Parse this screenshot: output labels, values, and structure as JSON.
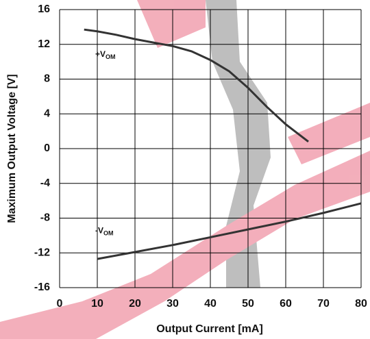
{
  "chart_data": {
    "type": "line",
    "x_label": "Output Current [mA]",
    "y_label": "Maximum Output Voltage [V]",
    "xlim": [
      0,
      80
    ],
    "xticks": [
      0,
      10,
      20,
      30,
      40,
      50,
      60,
      70,
      80
    ],
    "ylim": [
      -16,
      16
    ],
    "yticks": [
      -16,
      -12,
      -8,
      -4,
      0,
      4,
      8,
      12,
      16
    ],
    "grid": true,
    "series": [
      {
        "color": "#333333",
        "x": [
          6.5,
          10,
          15,
          20,
          25,
          30,
          35,
          40,
          45,
          50,
          55,
          60,
          66
        ],
        "values": [
          13.7,
          13.5,
          13.1,
          12.6,
          12.2,
          11.8,
          11.2,
          10.2,
          8.9,
          7,
          4.8,
          2.8,
          0.8
        ]
      },
      {
        "color": "#333333",
        "x": [
          10,
          20,
          30,
          40,
          50,
          60,
          70,
          80
        ],
        "values": [
          -12.7,
          -11.9,
          -11.1,
          -10.2,
          -9.3,
          -8.4,
          -7.4,
          -6.3
        ]
      }
    ],
    "annotations": [
      {
        "text": "+V",
        "sub": "OM",
        "x": 10,
        "y": 10.8
      },
      {
        "text": "-V",
        "sub": "OM",
        "x": 10,
        "y": -9.5
      }
    ]
  }
}
